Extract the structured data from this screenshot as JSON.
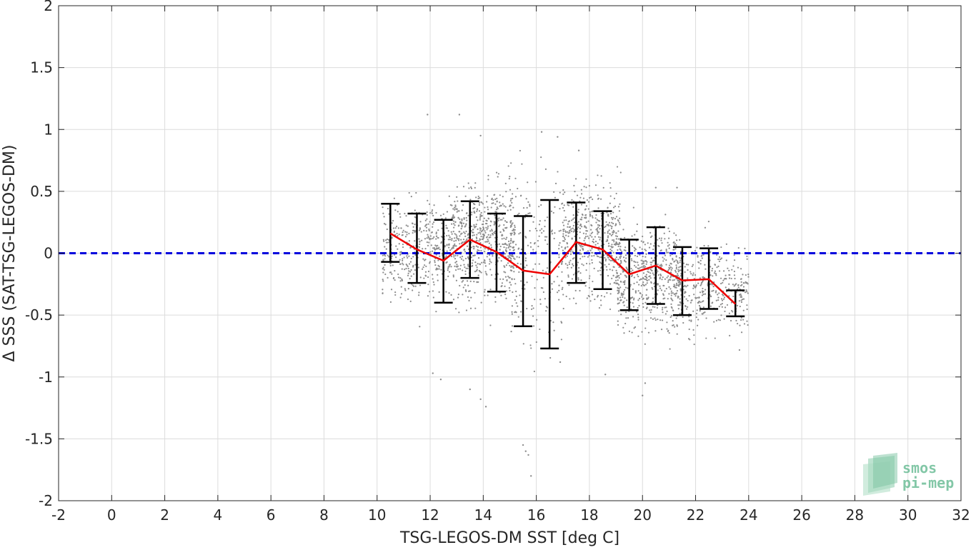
{
  "chart_data": {
    "type": "scatter",
    "title": "",
    "xlabel": "TSG-LEGOS-DM SST [deg C]",
    "ylabel": "Δ SSS (SAT-TSG-LEGOS-DM)",
    "xlim": [
      -2,
      32
    ],
    "ylim": [
      -2,
      2
    ],
    "x_ticks": [
      -2,
      0,
      2,
      4,
      6,
      8,
      10,
      12,
      14,
      16,
      18,
      20,
      22,
      24,
      26,
      28,
      30,
      32
    ],
    "x_tick_labels": [
      "-2",
      "0",
      "2",
      "4",
      "6",
      "8",
      "10",
      "12",
      "14",
      "16",
      "18",
      "20",
      "22",
      "24",
      "26",
      "28",
      "30",
      "32"
    ],
    "y_ticks": [
      -2,
      -1.5,
      -1,
      -0.5,
      0,
      0.5,
      1,
      1.5,
      2
    ],
    "y_tick_labels": [
      "-2",
      "-1.5",
      "-1",
      "-0.5",
      "0",
      "0.5",
      "1",
      "1.5",
      "2"
    ],
    "grid": true,
    "reference_line": {
      "y": 0,
      "style": "dashed",
      "color": "#0000dd"
    },
    "binned_series": {
      "color": "#ee0000",
      "x": [
        10.5,
        11.5,
        12.5,
        13.5,
        14.5,
        15.5,
        16.5,
        17.5,
        18.5,
        19.5,
        20.5,
        21.5,
        22.5,
        23.5
      ],
      "mean": [
        0.16,
        0.03,
        -0.06,
        0.11,
        0.01,
        -0.14,
        -0.17,
        0.09,
        0.03,
        -0.17,
        -0.1,
        -0.22,
        -0.21,
        -0.41
      ],
      "upper": [
        0.4,
        0.32,
        0.27,
        0.42,
        0.32,
        0.3,
        0.43,
        0.41,
        0.34,
        0.11,
        0.21,
        0.05,
        0.04,
        -0.3
      ],
      "lower": [
        -0.07,
        -0.24,
        -0.4,
        -0.2,
        -0.31,
        -0.59,
        -0.77,
        -0.24,
        -0.29,
        -0.46,
        -0.41,
        -0.5,
        -0.45,
        -0.51
      ]
    },
    "scatter_color": "#8c8c8c",
    "scatter_clusters": [
      {
        "x": [
          10.2,
          12.8
        ],
        "mean": 0.02,
        "sd": 0.2,
        "n": 420
      },
      {
        "x": [
          12.8,
          15.2
        ],
        "mean": 0.12,
        "sd": 0.22,
        "n": 650
      },
      {
        "x": [
          15.0,
          17.0
        ],
        "mean": -0.05,
        "sd": 0.35,
        "n": 220
      },
      {
        "x": [
          17.0,
          19.2
        ],
        "mean": 0.12,
        "sd": 0.22,
        "n": 500
      },
      {
        "x": [
          19.0,
          21.5
        ],
        "mean": -0.2,
        "sd": 0.2,
        "n": 500
      },
      {
        "x": [
          21.0,
          24.0
        ],
        "mean": -0.28,
        "sd": 0.17,
        "n": 380
      }
    ],
    "scatter_outliers": [
      {
        "x": 11.9,
        "y": 1.12
      },
      {
        "x": 13.1,
        "y": 1.12
      },
      {
        "x": 13.9,
        "y": 0.95
      },
      {
        "x": 16.2,
        "y": 0.98
      },
      {
        "x": 16.8,
        "y": 0.94
      },
      {
        "x": 15.6,
        "y": -1.6
      },
      {
        "x": 15.7,
        "y": -1.63
      },
      {
        "x": 15.8,
        "y": -1.8
      },
      {
        "x": 15.5,
        "y": -1.55
      },
      {
        "x": 13.9,
        "y": -1.18
      },
      {
        "x": 14.1,
        "y": -1.24
      },
      {
        "x": 13.5,
        "y": -1.1
      },
      {
        "x": 12.4,
        "y": -1.02
      },
      {
        "x": 12.1,
        "y": -0.97
      },
      {
        "x": 20.0,
        "y": -1.15
      },
      {
        "x": 20.1,
        "y": -1.05
      },
      {
        "x": 18.6,
        "y": -0.98
      },
      {
        "x": 17.6,
        "y": 0.83
      },
      {
        "x": 20.5,
        "y": 0.53
      },
      {
        "x": 21.3,
        "y": 0.53
      },
      {
        "x": 16.9,
        "y": -0.88
      }
    ],
    "watermark": {
      "line1": "smos",
      "line2": "pi-mep"
    }
  }
}
